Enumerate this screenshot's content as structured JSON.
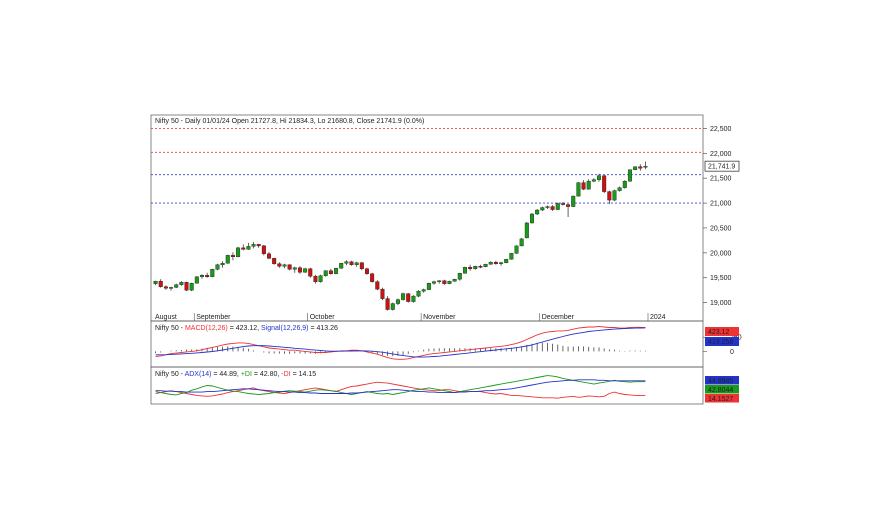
{
  "header": {
    "main": "Nifty 50 - Daily 01/01/24 Open 21727.8, Hi 21834.3, Lo 21680.8, Close 21741.9 (0.0%)",
    "macd_name": "Nifty 50 - ",
    "macd_label": "MACD(12,26)",
    "macd_value": " = 423.12, ",
    "signal_label": "Signal(12,26,9)",
    "signal_value": " = 413.26",
    "adx_name": "Nifty 50 - ",
    "adx_label": "ADX(14)",
    "adx_value": " = 44.89, ",
    "pdi_label": "+DI",
    "pdi_value": " = 42.80, ",
    "mdi_label": "-DI",
    "mdi_value": " = 14.15"
  },
  "colors": {
    "up": "#1a9a1a",
    "down": "#cc1111",
    "macd": "#ee3333",
    "signal": "#2233cc",
    "adx": "#2233cc",
    "pdi": "#1a9a1a",
    "mdi": "#ee3333",
    "resistance": "#e44444",
    "support": "#3344cc"
  },
  "chart_data": [
    {
      "type": "candlestick",
      "title": "Nifty 50 - Daily 01/01/24",
      "ylim": [
        18650,
        22750
      ],
      "yticks": [
        "22,500",
        "22,000",
        "21,500",
        "21,000",
        "20,500",
        "20,000",
        "19,500",
        "19,000"
      ],
      "last_price": "21,741.9",
      "x_labels": [
        "August",
        "September",
        "October",
        "November",
        "December",
        "2024"
      ],
      "resistance_levels": [
        22500,
        22020
      ],
      "support_levels": [
        21570,
        21000
      ],
      "candles": [
        [
          19380,
          19440,
          19350,
          19430
        ],
        [
          19430,
          19470,
          19300,
          19320
        ],
        [
          19320,
          19345,
          19255,
          19290
        ],
        [
          19290,
          19320,
          19240,
          19305
        ],
        [
          19305,
          19380,
          19290,
          19360
        ],
        [
          19360,
          19430,
          19340,
          19410
        ],
        [
          19410,
          19420,
          19230,
          19250
        ],
        [
          19250,
          19400,
          19230,
          19390
        ],
        [
          19390,
          19530,
          19380,
          19520
        ],
        [
          19520,
          19570,
          19480,
          19550
        ],
        [
          19550,
          19600,
          19500,
          19520
        ],
        [
          19520,
          19680,
          19510,
          19670
        ],
        [
          19670,
          19780,
          19650,
          19760
        ],
        [
          19760,
          19830,
          19700,
          19790
        ],
        [
          19790,
          19960,
          19780,
          19950
        ],
        [
          19950,
          20010,
          19850,
          19920
        ],
        [
          19920,
          20120,
          19910,
          20100
        ],
        [
          20100,
          20170,
          20050,
          20070
        ],
        [
          20070,
          20200,
          20060,
          20130
        ],
        [
          20130,
          20220,
          20090,
          20170
        ],
        [
          20170,
          20180,
          20100,
          20140
        ],
        [
          20140,
          20160,
          19950,
          19980
        ],
        [
          19980,
          20020,
          19870,
          19890
        ],
        [
          19890,
          19900,
          19760,
          19780
        ],
        [
          19780,
          19810,
          19700,
          19730
        ],
        [
          19730,
          19780,
          19690,
          19760
        ],
        [
          19760,
          19770,
          19650,
          19670
        ],
        [
          19670,
          19720,
          19600,
          19700
        ],
        [
          19700,
          19730,
          19580,
          19610
        ],
        [
          19610,
          19700,
          19600,
          19680
        ],
        [
          19680,
          19700,
          19500,
          19530
        ],
        [
          19530,
          19560,
          19380,
          19420
        ],
        [
          19420,
          19560,
          19400,
          19540
        ],
        [
          19540,
          19650,
          19520,
          19640
        ],
        [
          19640,
          19680,
          19560,
          19580
        ],
        [
          19580,
          19700,
          19570,
          19690
        ],
        [
          19690,
          19800,
          19680,
          19790
        ],
        [
          19790,
          19850,
          19750,
          19820
        ],
        [
          19820,
          19840,
          19740,
          19760
        ],
        [
          19760,
          19820,
          19720,
          19800
        ],
        [
          19800,
          19820,
          19650,
          19680
        ],
        [
          19680,
          19700,
          19560,
          19580
        ],
        [
          19580,
          19600,
          19400,
          19420
        ],
        [
          19420,
          19450,
          19250,
          19270
        ],
        [
          19270,
          19300,
          19050,
          19080
        ],
        [
          19080,
          19130,
          18840,
          18860
        ],
        [
          18860,
          19000,
          18840,
          18980
        ],
        [
          18980,
          19080,
          18950,
          19060
        ],
        [
          19060,
          19200,
          19040,
          19180
        ],
        [
          19180,
          19190,
          19000,
          19020
        ],
        [
          19020,
          19150,
          19000,
          19130
        ],
        [
          19130,
          19250,
          19110,
          19230
        ],
        [
          19230,
          19280,
          19200,
          19260
        ],
        [
          19260,
          19400,
          19250,
          19390
        ],
        [
          19390,
          19440,
          19360,
          19420
        ],
        [
          19420,
          19450,
          19380,
          19440
        ],
        [
          19440,
          19460,
          19360,
          19380
        ],
        [
          19380,
          19440,
          19370,
          19430
        ],
        [
          19430,
          19480,
          19420,
          19470
        ],
        [
          19470,
          19600,
          19440,
          19590
        ],
        [
          19590,
          19720,
          19580,
          19710
        ],
        [
          19710,
          19760,
          19640,
          19680
        ],
        [
          19680,
          19740,
          19660,
          19730
        ],
        [
          19730,
          19760,
          19690,
          19720
        ],
        [
          19720,
          19780,
          19710,
          19770
        ],
        [
          19770,
          19830,
          19760,
          19810
        ],
        [
          19810,
          19840,
          19760,
          19780
        ],
        [
          19780,
          19820,
          19740,
          19800
        ],
        [
          19800,
          19880,
          19790,
          19870
        ],
        [
          19870,
          20000,
          19860,
          19990
        ],
        [
          19990,
          20150,
          19980,
          20140
        ],
        [
          20140,
          20300,
          20130,
          20280
        ],
        [
          20300,
          20620,
          20290,
          20600
        ],
        [
          20600,
          20800,
          20590,
          20780
        ],
        [
          20780,
          20880,
          20760,
          20860
        ],
        [
          20860,
          20930,
          20840,
          20910
        ],
        [
          20910,
          20950,
          20880,
          20930
        ],
        [
          20930,
          20960,
          20840,
          20870
        ],
        [
          20870,
          21010,
          20860,
          20990
        ],
        [
          20990,
          21020,
          20950,
          20970
        ],
        [
          20970,
          20980,
          20720,
          20930
        ],
        [
          20930,
          21150,
          20920,
          21140
        ],
        [
          21140,
          21420,
          21130,
          21410
        ],
        [
          21410,
          21460,
          21260,
          21280
        ],
        [
          21280,
          21480,
          21270,
          21440
        ],
        [
          21440,
          21500,
          21420,
          21470
        ],
        [
          21470,
          21590,
          21430,
          21550
        ],
        [
          21550,
          21560,
          21200,
          21230
        ],
        [
          21230,
          21250,
          20980,
          21060
        ],
        [
          21060,
          21270,
          21040,
          21250
        ],
        [
          21250,
          21330,
          21230,
          21310
        ],
        [
          21310,
          21460,
          21290,
          21440
        ],
        [
          21440,
          21680,
          21430,
          21670
        ],
        [
          21670,
          21740,
          21660,
          21730
        ],
        [
          21730,
          21780,
          21650,
          21700
        ],
        [
          21727,
          21834,
          21680,
          21741
        ]
      ]
    },
    {
      "type": "line",
      "title": "MACD(12,26) / Signal(12,26,9)",
      "ylim": [
        -240,
        500
      ],
      "yticks": [
        "250",
        "0"
      ],
      "last_values": [
        "423.12",
        "413.258"
      ],
      "macd": [
        -90,
        -80,
        -60,
        -40,
        -30,
        -20,
        -10,
        0,
        10,
        30,
        50,
        70,
        90,
        110,
        130,
        140,
        150,
        150,
        140,
        120,
        100,
        80,
        60,
        50,
        40,
        30,
        20,
        20,
        10,
        0,
        -10,
        -20,
        -20,
        -20,
        -10,
        0,
        10,
        10,
        20,
        20,
        10,
        -10,
        -30,
        -50,
        -80,
        -110,
        -130,
        -140,
        -140,
        -130,
        -110,
        -90,
        -70,
        -50,
        -40,
        -30,
        -20,
        -10,
        0,
        10,
        20,
        30,
        40,
        50,
        60,
        70,
        80,
        90,
        100,
        120,
        140,
        170,
        210,
        250,
        290,
        320,
        340,
        350,
        360,
        360,
        370,
        390,
        410,
        420,
        430,
        430,
        440,
        430,
        420,
        420,
        410,
        410,
        420,
        425,
        425,
        423
      ],
      "signal": [
        -60,
        -60,
        -58,
        -54,
        -50,
        -45,
        -40,
        -34,
        -27,
        -19,
        -11,
        -2,
        10,
        25,
        40,
        55,
        70,
        85,
        95,
        100,
        102,
        100,
        95,
        88,
        80,
        72,
        64,
        55,
        47,
        40,
        30,
        22,
        15,
        8,
        4,
        3,
        4,
        5,
        7,
        9,
        10,
        7,
        3,
        -5,
        -15,
        -30,
        -45,
        -60,
        -75,
        -85,
        -95,
        -100,
        -100,
        -95,
        -90,
        -85,
        -75,
        -65,
        -55,
        -45,
        -35,
        -25,
        -15,
        -5,
        5,
        15,
        25,
        35,
        45,
        55,
        65,
        80,
        95,
        115,
        140,
        165,
        190,
        215,
        240,
        262,
        285,
        305,
        320,
        335,
        350,
        360,
        370,
        378,
        385,
        392,
        398,
        403,
        407,
        410,
        412,
        413
      ],
      "colors": [
        "macd",
        "signal"
      ]
    },
    {
      "type": "line",
      "title": "ADX(14) / +DI / -DI",
      "ylim": [
        0,
        70
      ],
      "last_values": [
        "44.8945",
        "42.8044",
        "14.1527"
      ],
      "adx": [
        24,
        24,
        23,
        23,
        22,
        22,
        21,
        21,
        21,
        21,
        22,
        22,
        23,
        24,
        25,
        26,
        27,
        28,
        28,
        27,
        26,
        25,
        24,
        23,
        22,
        22,
        21,
        21,
        20,
        20,
        19,
        19,
        18,
        18,
        18,
        18,
        18,
        18,
        19,
        19,
        20,
        21,
        22,
        23,
        24,
        25,
        26,
        26,
        25,
        24,
        23,
        22,
        22,
        21,
        21,
        20,
        20,
        20,
        20,
        21,
        21,
        22,
        22,
        23,
        24,
        24,
        25,
        26,
        27,
        28,
        30,
        32,
        34,
        36,
        38,
        40,
        42,
        43,
        44,
        45,
        46,
        46,
        47,
        47,
        47,
        47,
        46,
        46,
        45,
        45,
        45,
        45,
        45,
        45,
        45,
        45
      ],
      "pdi": [
        22,
        20,
        18,
        16,
        15,
        18,
        20,
        25,
        28,
        32,
        35,
        34,
        31,
        28,
        25,
        23,
        22,
        20,
        18,
        17,
        16,
        17,
        18,
        20,
        21,
        23,
        24,
        23,
        22,
        21,
        23,
        25,
        26,
        25,
        24,
        23,
        20,
        18,
        16,
        18,
        20,
        22,
        20,
        18,
        17,
        18,
        16,
        18,
        20,
        22,
        25,
        26,
        28,
        30,
        28,
        26,
        24,
        22,
        20,
        22,
        24,
        26,
        28,
        30,
        32,
        34,
        36,
        38,
        40,
        42,
        44,
        46,
        48,
        50,
        52,
        54,
        56,
        55,
        53,
        50,
        48,
        46,
        44,
        42,
        40,
        38,
        40,
        42,
        44,
        46,
        44,
        43,
        42,
        43,
        43,
        43
      ],
      "mdi": [
        18,
        20,
        22,
        24,
        22,
        20,
        18,
        16,
        14,
        13,
        12,
        13,
        15,
        17,
        20,
        22,
        24,
        26,
        28,
        30,
        26,
        24,
        22,
        20,
        19,
        18,
        20,
        22,
        24,
        26,
        28,
        30,
        28,
        26,
        24,
        22,
        26,
        30,
        33,
        34,
        36,
        38,
        40,
        42,
        41,
        40,
        38,
        36,
        34,
        32,
        30,
        28,
        26,
        25,
        24,
        24,
        26,
        26,
        24,
        22,
        22,
        22,
        22,
        22,
        20,
        18,
        17,
        18,
        16,
        14,
        14,
        13,
        12,
        11,
        10,
        9,
        9,
        9,
        8,
        10,
        11,
        12,
        10,
        11,
        13,
        12,
        11,
        12,
        18,
        21,
        18,
        16,
        15,
        14,
        14,
        14
      ],
      "colors": [
        "adx",
        "pdi",
        "mdi"
      ]
    }
  ]
}
